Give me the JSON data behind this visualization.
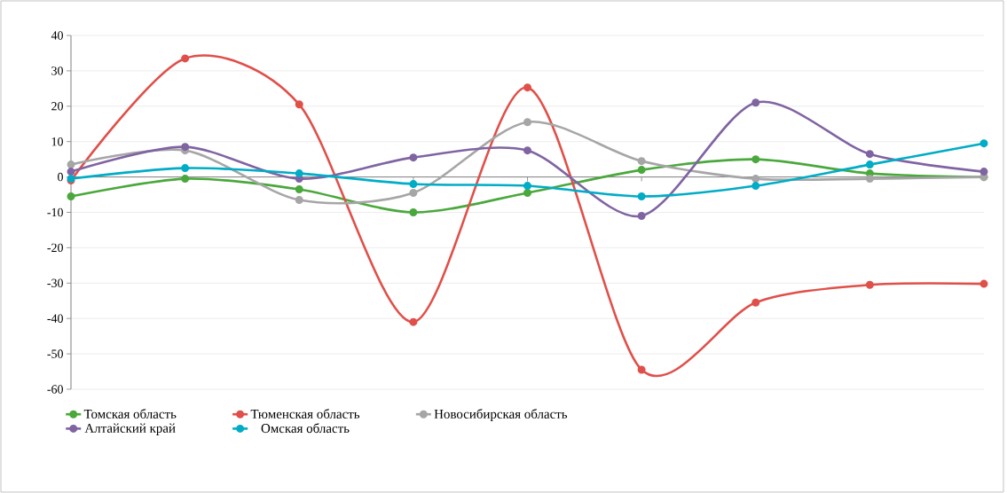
{
  "chart_data": {
    "type": "line",
    "categories": [
      null,
      null,
      null,
      null,
      null,
      null,
      null,
      null,
      null
    ],
    "series": [
      {
        "name": "Томская область",
        "color": "#4aa83c",
        "values": [
          -5.5,
          -0.5,
          -3.5,
          -10,
          -4.5,
          2,
          5,
          1,
          0
        ]
      },
      {
        "name": "Тюменская область",
        "color": "#e0504a",
        "values": [
          -1,
          33.5,
          20.5,
          -41,
          25.3,
          -54.5,
          -35.5,
          -30.5,
          -30.2
        ]
      },
      {
        "name": "Новосибирская область",
        "color": "#a6a6a6",
        "values": [
          3.5,
          7.5,
          -6.5,
          -4.5,
          15.5,
          4.5,
          -0.5,
          -0.5,
          0
        ]
      },
      {
        "name": "Алтайский край",
        "color": "#8064a2",
        "values": [
          1.5,
          8.5,
          -0.5,
          5.5,
          7.5,
          -11,
          21,
          6.5,
          1.5
        ]
      },
      {
        "name": "Омская область",
        "color": "#00acc6",
        "values": [
          -0.5,
          2.5,
          1,
          -2,
          -2.5,
          -5.5,
          -2.5,
          3.5,
          9.5
        ]
      }
    ],
    "ylim": [
      -60,
      40
    ],
    "yticks": [
      -60,
      -50,
      -40,
      -30,
      -20,
      -10,
      0,
      10,
      20,
      30,
      40
    ],
    "grid": "y",
    "legend": "bottom",
    "marker": "circle",
    "line_style": "solid",
    "tick_labels": "y"
  }
}
